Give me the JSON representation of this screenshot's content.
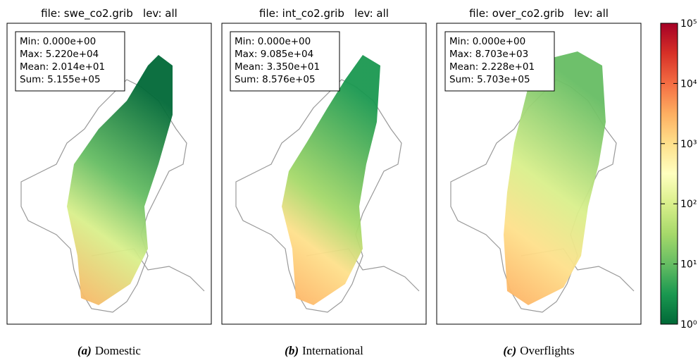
{
  "panels": [
    {
      "title": "file: swe_co2.grib   lev: all",
      "stats": [
        "Min: 0.000e+00",
        "Max: 5.220e+04",
        "Mean: 2.014e+01",
        "Sum: 5.155e+05"
      ],
      "caption_label": "(a)",
      "caption": "Domestic"
    },
    {
      "title": "file: int_co2.grib   lev: all",
      "stats": [
        "Min: 0.000e+00",
        "Max: 9.085e+04",
        "Mean: 3.350e+01",
        "Sum: 8.576e+05"
      ],
      "caption_label": "(b)",
      "caption": "International"
    },
    {
      "title": "file: over_co2.grib   lev: all",
      "stats": [
        "Min: 0.000e+00",
        "Max: 8.703e+03",
        "Mean: 2.228e+01",
        "Sum: 5.703e+05"
      ],
      "caption_label": "(c)",
      "caption": "Overflights"
    }
  ],
  "colorbar": {
    "scale": "log",
    "lim": [
      1,
      100000
    ],
    "ticks": [
      {
        "value": 1,
        "label": "10⁰"
      },
      {
        "value": 10,
        "label": "10¹"
      },
      {
        "value": 100,
        "label": "10²"
      },
      {
        "value": 1000,
        "label": "10³"
      },
      {
        "value": 10000,
        "label": "10⁴"
      },
      {
        "value": 100000,
        "label": "10⁵"
      }
    ]
  }
}
